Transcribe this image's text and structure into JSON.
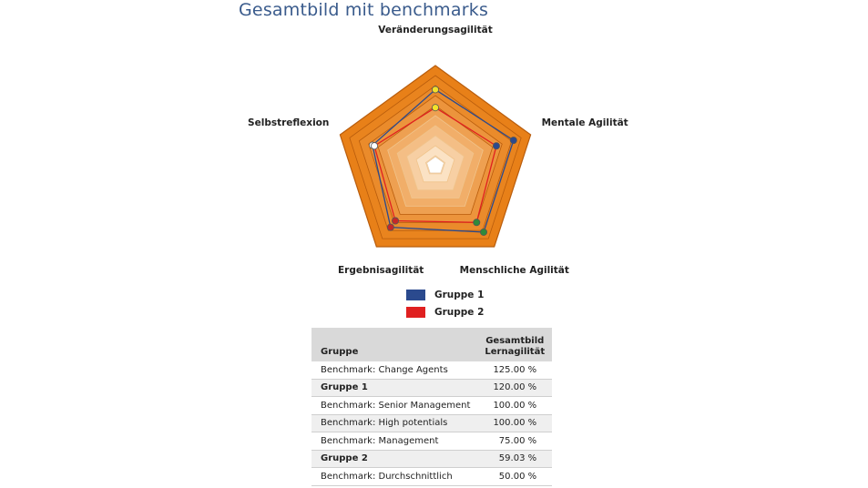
{
  "title": "Gesamtbild mit benchmarks",
  "chart_data": {
    "type": "radar",
    "axes": [
      "Veränderungsagilität",
      "Mentale Agilität",
      "Menschliche Agilität",
      "Ergebnisagilität",
      "Selbstreflexion"
    ],
    "rmax": 5,
    "rings": 10,
    "series": [
      {
        "name": "Gruppe 1",
        "color": "#2b4a8e",
        "values": [
          3.8,
          4.1,
          4.1,
          3.8,
          3.3
        ]
      },
      {
        "name": "Gruppe 2",
        "color": "#e02020",
        "values": [
          2.9,
          3.2,
          3.5,
          3.4,
          3.2
        ]
      }
    ],
    "markers": [
      {
        "axis": 0,
        "value": 3.8,
        "color": "#f2e12a"
      },
      {
        "axis": 0,
        "value": 2.9,
        "color": "#f2e12a"
      },
      {
        "axis": 1,
        "value": 4.1,
        "color": "#2b4a8e"
      },
      {
        "axis": 1,
        "value": 3.2,
        "color": "#2b4a8e"
      },
      {
        "axis": 2,
        "value": 4.1,
        "color": "#2f8a3a"
      },
      {
        "axis": 2,
        "value": 3.5,
        "color": "#2f8a3a"
      },
      {
        "axis": 3,
        "value": 3.8,
        "color": "#c62828"
      },
      {
        "axis": 3,
        "value": 3.4,
        "color": "#c62828"
      },
      {
        "axis": 4,
        "value": 3.3,
        "color": "#ffffff"
      },
      {
        "axis": 4,
        "value": 3.2,
        "color": "#ffffff"
      }
    ]
  },
  "legend": [
    {
      "label": "Gruppe 1",
      "color": "#2b4a8e"
    },
    {
      "label": "Gruppe  2",
      "color": "#e02020"
    }
  ],
  "table": {
    "headers": [
      "Gruppe",
      "Gesamtbild Lernagilität"
    ],
    "rows": [
      {
        "name": "Benchmark: Change Agents",
        "value": "125.00 %",
        "bold": false
      },
      {
        "name": "Gruppe 1",
        "value": "120.00 %",
        "bold": true
      },
      {
        "name": "Benchmark: Senior Management",
        "value": "100.00 %",
        "bold": false
      },
      {
        "name": "Benchmark: High potentials",
        "value": "100.00 %",
        "bold": false
      },
      {
        "name": "Benchmark: Management",
        "value": "75.00 %",
        "bold": false
      },
      {
        "name": "Gruppe 2",
        "value": "59.03 %",
        "bold": true
      },
      {
        "name": "Benchmark:  Durchschnittlich",
        "value": "50.00 %",
        "bold": false
      }
    ]
  }
}
